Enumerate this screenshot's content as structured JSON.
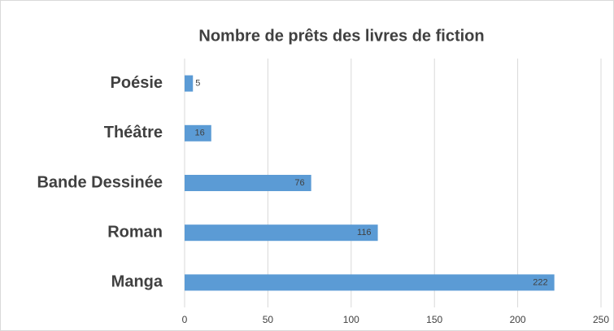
{
  "chart_data": {
    "type": "barh",
    "title": "Nombre de prêts des livres de fiction",
    "categories": [
      "Poésie",
      "Théâtre",
      "Bande Dessinée",
      "Roman",
      "Manga"
    ],
    "values": [
      5,
      16,
      76,
      116,
      222
    ],
    "color": "#5b9bd5",
    "xlim": [
      0,
      250
    ],
    "xticks": [
      0,
      50,
      100,
      150,
      200,
      250
    ],
    "grid": true
  }
}
